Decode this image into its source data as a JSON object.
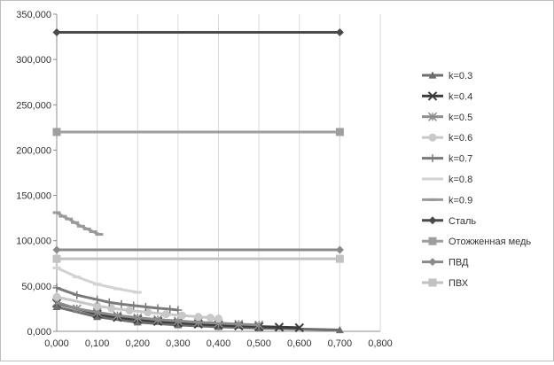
{
  "chart_data": {
    "type": "line",
    "title": "",
    "xlabel": "",
    "ylabel": "",
    "xlim": [
      0,
      0.8
    ],
    "ylim": [
      0,
      350000
    ],
    "x_ticks": [
      "0,000",
      "0,100",
      "0,200",
      "0,300",
      "0,400",
      "0,500",
      "0,600",
      "0,700",
      "0,800"
    ],
    "y_ticks": [
      "0,000",
      "50,000",
      "100,000",
      "150,000",
      "200,000",
      "250,000",
      "300,000",
      "350,000"
    ],
    "grid": "vertical",
    "legend_position": "right",
    "series": [
      {
        "name": "k=0.3",
        "marker": "triangle",
        "color": "#6e6e6e",
        "x": [
          0,
          0.1,
          0.2,
          0.3,
          0.4,
          0.5,
          0.7
        ],
        "y": [
          27000,
          16000,
          10000,
          7000,
          5000,
          3500,
          1500
        ]
      },
      {
        "name": "k=0.4",
        "marker": "x",
        "color": "#3c3c3c",
        "x": [
          0,
          0.1,
          0.15,
          0.2,
          0.25,
          0.3,
          0.35,
          0.4,
          0.45,
          0.5,
          0.55,
          0.6
        ],
        "y": [
          31000,
          19000,
          15500,
          13000,
          11000,
          9500,
          8000,
          7000,
          6000,
          5200,
          4600,
          4000
        ]
      },
      {
        "name": "k=0.5",
        "marker": "star",
        "color": "#8c8c8c",
        "x": [
          0,
          0.05,
          0.1,
          0.15,
          0.2,
          0.25,
          0.3,
          0.35,
          0.4,
          0.45,
          0.5
        ],
        "y": [
          32000,
          25000,
          21000,
          17500,
          15000,
          13000,
          11500,
          10000,
          9000,
          8000,
          7000
        ]
      },
      {
        "name": "k=0.6",
        "marker": "circle",
        "color": "#c8c8c8",
        "x": [
          0,
          0.1,
          0.135,
          0.18,
          0.225,
          0.27,
          0.31,
          0.35,
          0.38,
          0.4
        ],
        "y": [
          38000,
          28000,
          25500,
          23000,
          21000,
          19000,
          17500,
          16000,
          15000,
          14000
        ]
      },
      {
        "name": "k=0.7",
        "marker": "plus",
        "color": "#7a7a7a",
        "x": [
          0,
          0.05,
          0.1,
          0.13,
          0.16,
          0.19,
          0.22,
          0.25,
          0.28,
          0.3
        ],
        "y": [
          48000,
          40000,
          35000,
          32000,
          30000,
          28500,
          27000,
          25500,
          24500,
          23500
        ]
      },
      {
        "name": "k=0.8",
        "marker": "dash",
        "color": "#d2d2d2",
        "x": [
          0,
          0.05,
          0.1,
          0.15,
          0.2
        ],
        "y": [
          70000,
          60000,
          52000,
          47000,
          43000
        ]
      },
      {
        "name": "k=0.9",
        "marker": "dash",
        "color": "#9a9a9a",
        "x": [
          0,
          0.015,
          0.03,
          0.045,
          0.06,
          0.075,
          0.09,
          0.105
        ],
        "y": [
          131000,
          127000,
          124000,
          120000,
          116000,
          113000,
          110000,
          107000
        ]
      },
      {
        "name": "Сталь",
        "marker": "diamond",
        "color": "#4a4a4a",
        "x": [
          0,
          0.7
        ],
        "y": [
          330000,
          330000
        ]
      },
      {
        "name": "Отожженная медь",
        "marker": "square",
        "color": "#9e9e9e",
        "x": [
          0,
          0.7
        ],
        "y": [
          220000,
          220000
        ]
      },
      {
        "name": "ПВД",
        "marker": "diamond",
        "color": "#8a8a8a",
        "x": [
          0,
          0.7
        ],
        "y": [
          90000,
          90000
        ]
      },
      {
        "name": "ПВХ",
        "marker": "square",
        "color": "#c2c2c2",
        "x": [
          0,
          0.7
        ],
        "y": [
          80000,
          80000
        ]
      }
    ]
  }
}
